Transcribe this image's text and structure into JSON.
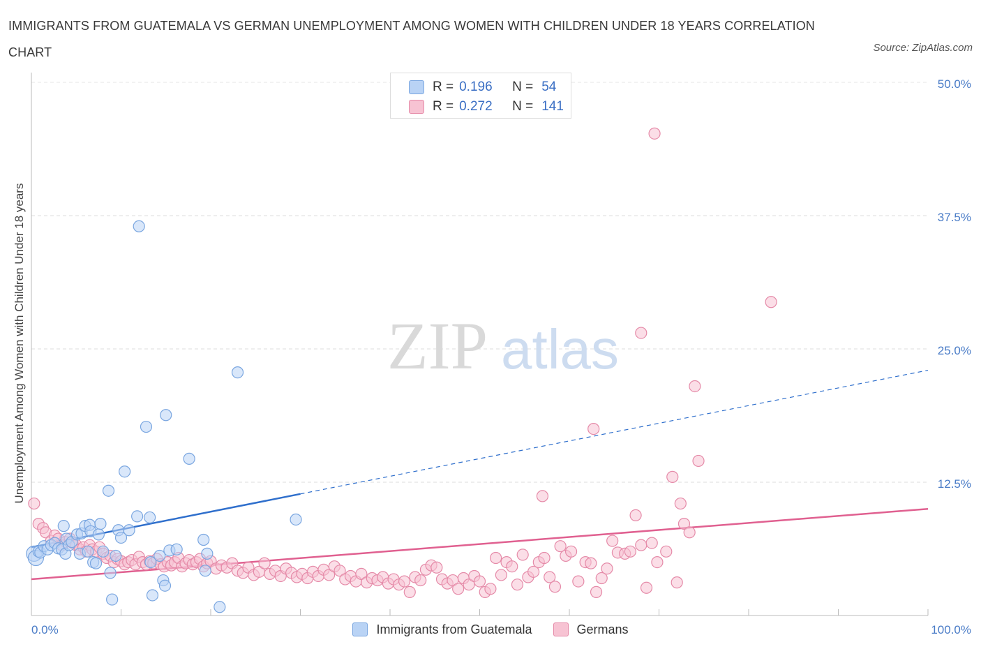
{
  "title": "IMMIGRANTS FROM GUATEMALA VS GERMAN UNEMPLOYMENT AMONG WOMEN WITH CHILDREN UNDER 18 YEARS CORRELATION CHART",
  "source": "Source: ZipAtlas.com",
  "watermark": {
    "zip": "ZIP",
    "atlas": "atlas"
  },
  "legend_top": [
    {
      "r_label": "R =",
      "r_value": "0.196",
      "n_label": "N =",
      "n_value": "54",
      "color": "#b9d3f5",
      "border": "#7aa6e0"
    },
    {
      "r_label": "R =",
      "r_value": "0.272",
      "n_label": "N =",
      "n_value": "141",
      "color": "#f7c3d3",
      "border": "#e58aa8"
    }
  ],
  "chart_data": {
    "type": "scatter",
    "title": "IMMIGRANTS FROM GUATEMALA VS GERMAN UNEMPLOYMENT AMONG WOMEN WITH CHILDREN UNDER 18 YEARS CORRELATION CHART",
    "xlabel": "",
    "ylabel": "Unemployment Among Women with Children Under 18 years",
    "xlim": [
      0,
      100
    ],
    "ylim": [
      0,
      50
    ],
    "x_tick_labels": [
      "0.0%",
      "100.0%"
    ],
    "y_ticks": [
      12.5,
      25.0,
      37.5,
      50.0
    ],
    "y_tick_labels": [
      "12.5%",
      "25.0%",
      "37.5%",
      "50.0%"
    ],
    "grid": "horizontal dashed",
    "legend_position": "bottom",
    "series": [
      {
        "name": "Immigrants from Guatemala",
        "color": "#b9d3f5",
        "stroke": "#7aa6e0",
        "line_color": "#2f6fcc",
        "trend": {
          "x0": 0,
          "y0": 6.4,
          "x1": 30,
          "y1": 11.4,
          "dashed_to_x": 100,
          "dashed_to_y": 23.0
        },
        "points": [
          [
            0.3,
            5.8
          ],
          [
            0.5,
            5.4
          ],
          [
            0.8,
            6.0
          ],
          [
            1.0,
            5.9
          ],
          [
            1.4,
            6.5
          ],
          [
            1.8,
            6.2
          ],
          [
            2.2,
            6.6
          ],
          [
            2.6,
            6.8
          ],
          [
            3.0,
            6.3
          ],
          [
            3.4,
            6.2
          ],
          [
            3.6,
            8.4
          ],
          [
            3.9,
            7.2
          ],
          [
            3.8,
            5.8
          ],
          [
            4.2,
            6.6
          ],
          [
            4.5,
            6.9
          ],
          [
            5.1,
            7.6
          ],
          [
            5.4,
            5.8
          ],
          [
            5.6,
            7.7
          ],
          [
            6.0,
            8.4
          ],
          [
            6.3,
            6.0
          ],
          [
            6.5,
            8.5
          ],
          [
            6.6,
            7.9
          ],
          [
            6.9,
            5.0
          ],
          [
            7.2,
            4.9
          ],
          [
            7.5,
            7.6
          ],
          [
            7.7,
            8.6
          ],
          [
            8.0,
            6.0
          ],
          [
            8.6,
            11.7
          ],
          [
            8.8,
            4.0
          ],
          [
            9.0,
            1.5
          ],
          [
            9.4,
            5.6
          ],
          [
            9.7,
            8.0
          ],
          [
            10.0,
            7.3
          ],
          [
            10.4,
            13.5
          ],
          [
            10.9,
            8.0
          ],
          [
            11.8,
            9.3
          ],
          [
            12.0,
            36.5
          ],
          [
            12.8,
            17.7
          ],
          [
            13.2,
            9.2
          ],
          [
            13.3,
            5.0
          ],
          [
            13.5,
            1.9
          ],
          [
            14.3,
            5.6
          ],
          [
            14.7,
            3.3
          ],
          [
            14.9,
            2.8
          ],
          [
            15.0,
            18.8
          ],
          [
            15.4,
            6.1
          ],
          [
            16.2,
            6.2
          ],
          [
            17.6,
            14.7
          ],
          [
            19.2,
            7.1
          ],
          [
            19.4,
            4.2
          ],
          [
            19.6,
            5.8
          ],
          [
            21.0,
            0.8
          ],
          [
            23.0,
            22.8
          ],
          [
            29.5,
            9.0
          ]
        ]
      },
      {
        "name": "Germans",
        "color": "#f7c3d3",
        "stroke": "#e58aa8",
        "line_color": "#e06090",
        "trend": {
          "x0": 0,
          "y0": 3.4,
          "x1": 100,
          "y1": 10.0
        },
        "points": [
          [
            0.3,
            10.5
          ],
          [
            0.8,
            8.6
          ],
          [
            1.3,
            8.2
          ],
          [
            1.6,
            7.8
          ],
          [
            2.2,
            7.0
          ],
          [
            2.6,
            7.5
          ],
          [
            3.0,
            7.2
          ],
          [
            3.4,
            6.6
          ],
          [
            3.8,
            6.9
          ],
          [
            4.3,
            7.2
          ],
          [
            4.6,
            6.8
          ],
          [
            5.0,
            6.6
          ],
          [
            5.4,
            6.2
          ],
          [
            5.8,
            6.4
          ],
          [
            6.1,
            6.0
          ],
          [
            6.5,
            6.6
          ],
          [
            6.8,
            6.2
          ],
          [
            7.2,
            6.0
          ],
          [
            7.6,
            6.4
          ],
          [
            8.0,
            5.8
          ],
          [
            8.4,
            5.4
          ],
          [
            8.8,
            5.6
          ],
          [
            9.2,
            5.0
          ],
          [
            9.6,
            5.3
          ],
          [
            10.0,
            5.1
          ],
          [
            10.4,
            4.8
          ],
          [
            10.8,
            5.0
          ],
          [
            11.2,
            5.2
          ],
          [
            11.6,
            4.8
          ],
          [
            12.0,
            5.5
          ],
          [
            12.4,
            5.0
          ],
          [
            12.8,
            4.8
          ],
          [
            13.2,
            5.1
          ],
          [
            13.6,
            4.9
          ],
          [
            14.0,
            5.3
          ],
          [
            14.4,
            4.8
          ],
          [
            14.8,
            4.6
          ],
          [
            15.2,
            5.0
          ],
          [
            15.6,
            4.7
          ],
          [
            16.0,
            5.0
          ],
          [
            16.4,
            5.4
          ],
          [
            16.8,
            4.6
          ],
          [
            17.2,
            4.9
          ],
          [
            17.6,
            5.2
          ],
          [
            18.0,
            4.8
          ],
          [
            18.4,
            5.0
          ],
          [
            18.8,
            5.3
          ],
          [
            19.2,
            4.6
          ],
          [
            19.6,
            4.9
          ],
          [
            20.0,
            5.1
          ],
          [
            20.6,
            4.4
          ],
          [
            21.2,
            4.7
          ],
          [
            21.8,
            4.5
          ],
          [
            22.4,
            4.9
          ],
          [
            23.0,
            4.2
          ],
          [
            23.6,
            4.0
          ],
          [
            24.2,
            4.5
          ],
          [
            24.8,
            3.8
          ],
          [
            25.4,
            4.1
          ],
          [
            26.0,
            4.9
          ],
          [
            26.6,
            3.9
          ],
          [
            27.2,
            4.2
          ],
          [
            27.8,
            3.7
          ],
          [
            28.4,
            4.4
          ],
          [
            29.0,
            4.0
          ],
          [
            29.6,
            3.6
          ],
          [
            30.2,
            3.9
          ],
          [
            30.8,
            3.5
          ],
          [
            31.4,
            4.1
          ],
          [
            32.0,
            3.7
          ],
          [
            32.6,
            4.3
          ],
          [
            33.2,
            3.8
          ],
          [
            33.8,
            4.6
          ],
          [
            34.4,
            4.2
          ],
          [
            35.0,
            3.4
          ],
          [
            35.6,
            3.7
          ],
          [
            36.2,
            3.2
          ],
          [
            36.8,
            3.9
          ],
          [
            37.4,
            3.1
          ],
          [
            38.0,
            3.5
          ],
          [
            38.6,
            3.3
          ],
          [
            39.2,
            3.6
          ],
          [
            39.8,
            3.0
          ],
          [
            40.4,
            3.4
          ],
          [
            41.0,
            2.9
          ],
          [
            41.6,
            3.2
          ],
          [
            42.2,
            2.2
          ],
          [
            42.8,
            3.6
          ],
          [
            43.4,
            3.3
          ],
          [
            44.0,
            4.3
          ],
          [
            44.6,
            4.7
          ],
          [
            45.2,
            4.5
          ],
          [
            45.8,
            3.4
          ],
          [
            46.4,
            3.0
          ],
          [
            47.0,
            3.3
          ],
          [
            47.6,
            2.5
          ],
          [
            48.2,
            3.5
          ],
          [
            48.8,
            2.9
          ],
          [
            49.4,
            3.7
          ],
          [
            50.0,
            3.2
          ],
          [
            50.6,
            2.2
          ],
          [
            51.2,
            2.5
          ],
          [
            51.8,
            5.4
          ],
          [
            52.4,
            3.8
          ],
          [
            53.0,
            5.0
          ],
          [
            53.6,
            4.6
          ],
          [
            54.2,
            2.9
          ],
          [
            54.8,
            5.7
          ],
          [
            55.4,
            3.6
          ],
          [
            56.0,
            4.1
          ],
          [
            56.6,
            5.0
          ],
          [
            57.2,
            5.4
          ],
          [
            57.8,
            3.6
          ],
          [
            58.4,
            2.7
          ],
          [
            59.0,
            6.5
          ],
          [
            59.6,
            5.6
          ],
          [
            60.2,
            6.0
          ],
          [
            61.0,
            3.2
          ],
          [
            61.8,
            5.0
          ],
          [
            62.4,
            4.9
          ],
          [
            63.0,
            2.2
          ],
          [
            63.6,
            3.5
          ],
          [
            64.2,
            4.4
          ],
          [
            64.8,
            7.0
          ],
          [
            65.4,
            5.9
          ],
          [
            66.2,
            5.8
          ],
          [
            66.8,
            6.0
          ],
          [
            67.4,
            9.4
          ],
          [
            68.0,
            6.6
          ],
          [
            68.6,
            2.6
          ],
          [
            69.2,
            6.8
          ],
          [
            69.8,
            5.0
          ],
          [
            70.8,
            6.0
          ],
          [
            72.0,
            3.1
          ],
          [
            72.4,
            10.5
          ],
          [
            72.8,
            8.6
          ],
          [
            73.4,
            7.8
          ],
          [
            57.0,
            11.2
          ],
          [
            62.7,
            17.5
          ],
          [
            68.0,
            26.5
          ],
          [
            71.5,
            13.0
          ],
          [
            74.0,
            21.5
          ],
          [
            74.4,
            14.5
          ],
          [
            69.5,
            45.2
          ],
          [
            82.5,
            29.4
          ]
        ]
      }
    ]
  }
}
